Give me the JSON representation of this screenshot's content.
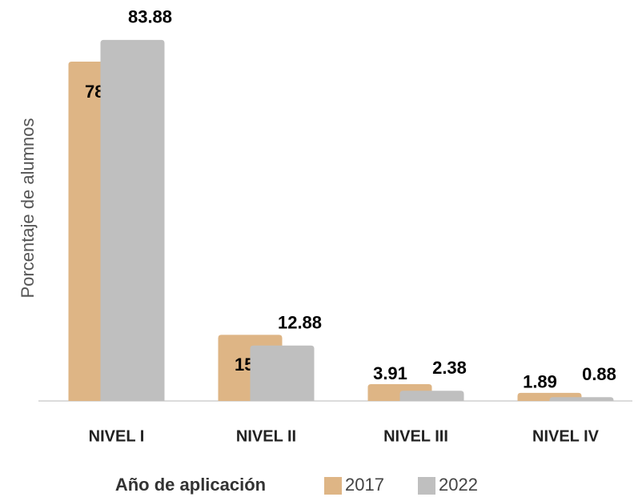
{
  "chart_data": {
    "type": "bar",
    "ylabel": "Porcentaje de alumnos",
    "xlabel": "Año de aplicación",
    "categories": [
      "NIVEL I",
      "NIVEL II",
      "NIVEL III",
      "NIVEL IV"
    ],
    "series": [
      {
        "name": "2017",
        "color": "#deb585",
        "values": [
          78.84,
          15.36,
          3.91,
          1.89
        ]
      },
      {
        "name": "2022",
        "color": "#bfbfbf",
        "values": [
          83.88,
          12.88,
          2.38,
          0.88
        ]
      }
    ],
    "ylim": [
      0,
      90
    ]
  }
}
